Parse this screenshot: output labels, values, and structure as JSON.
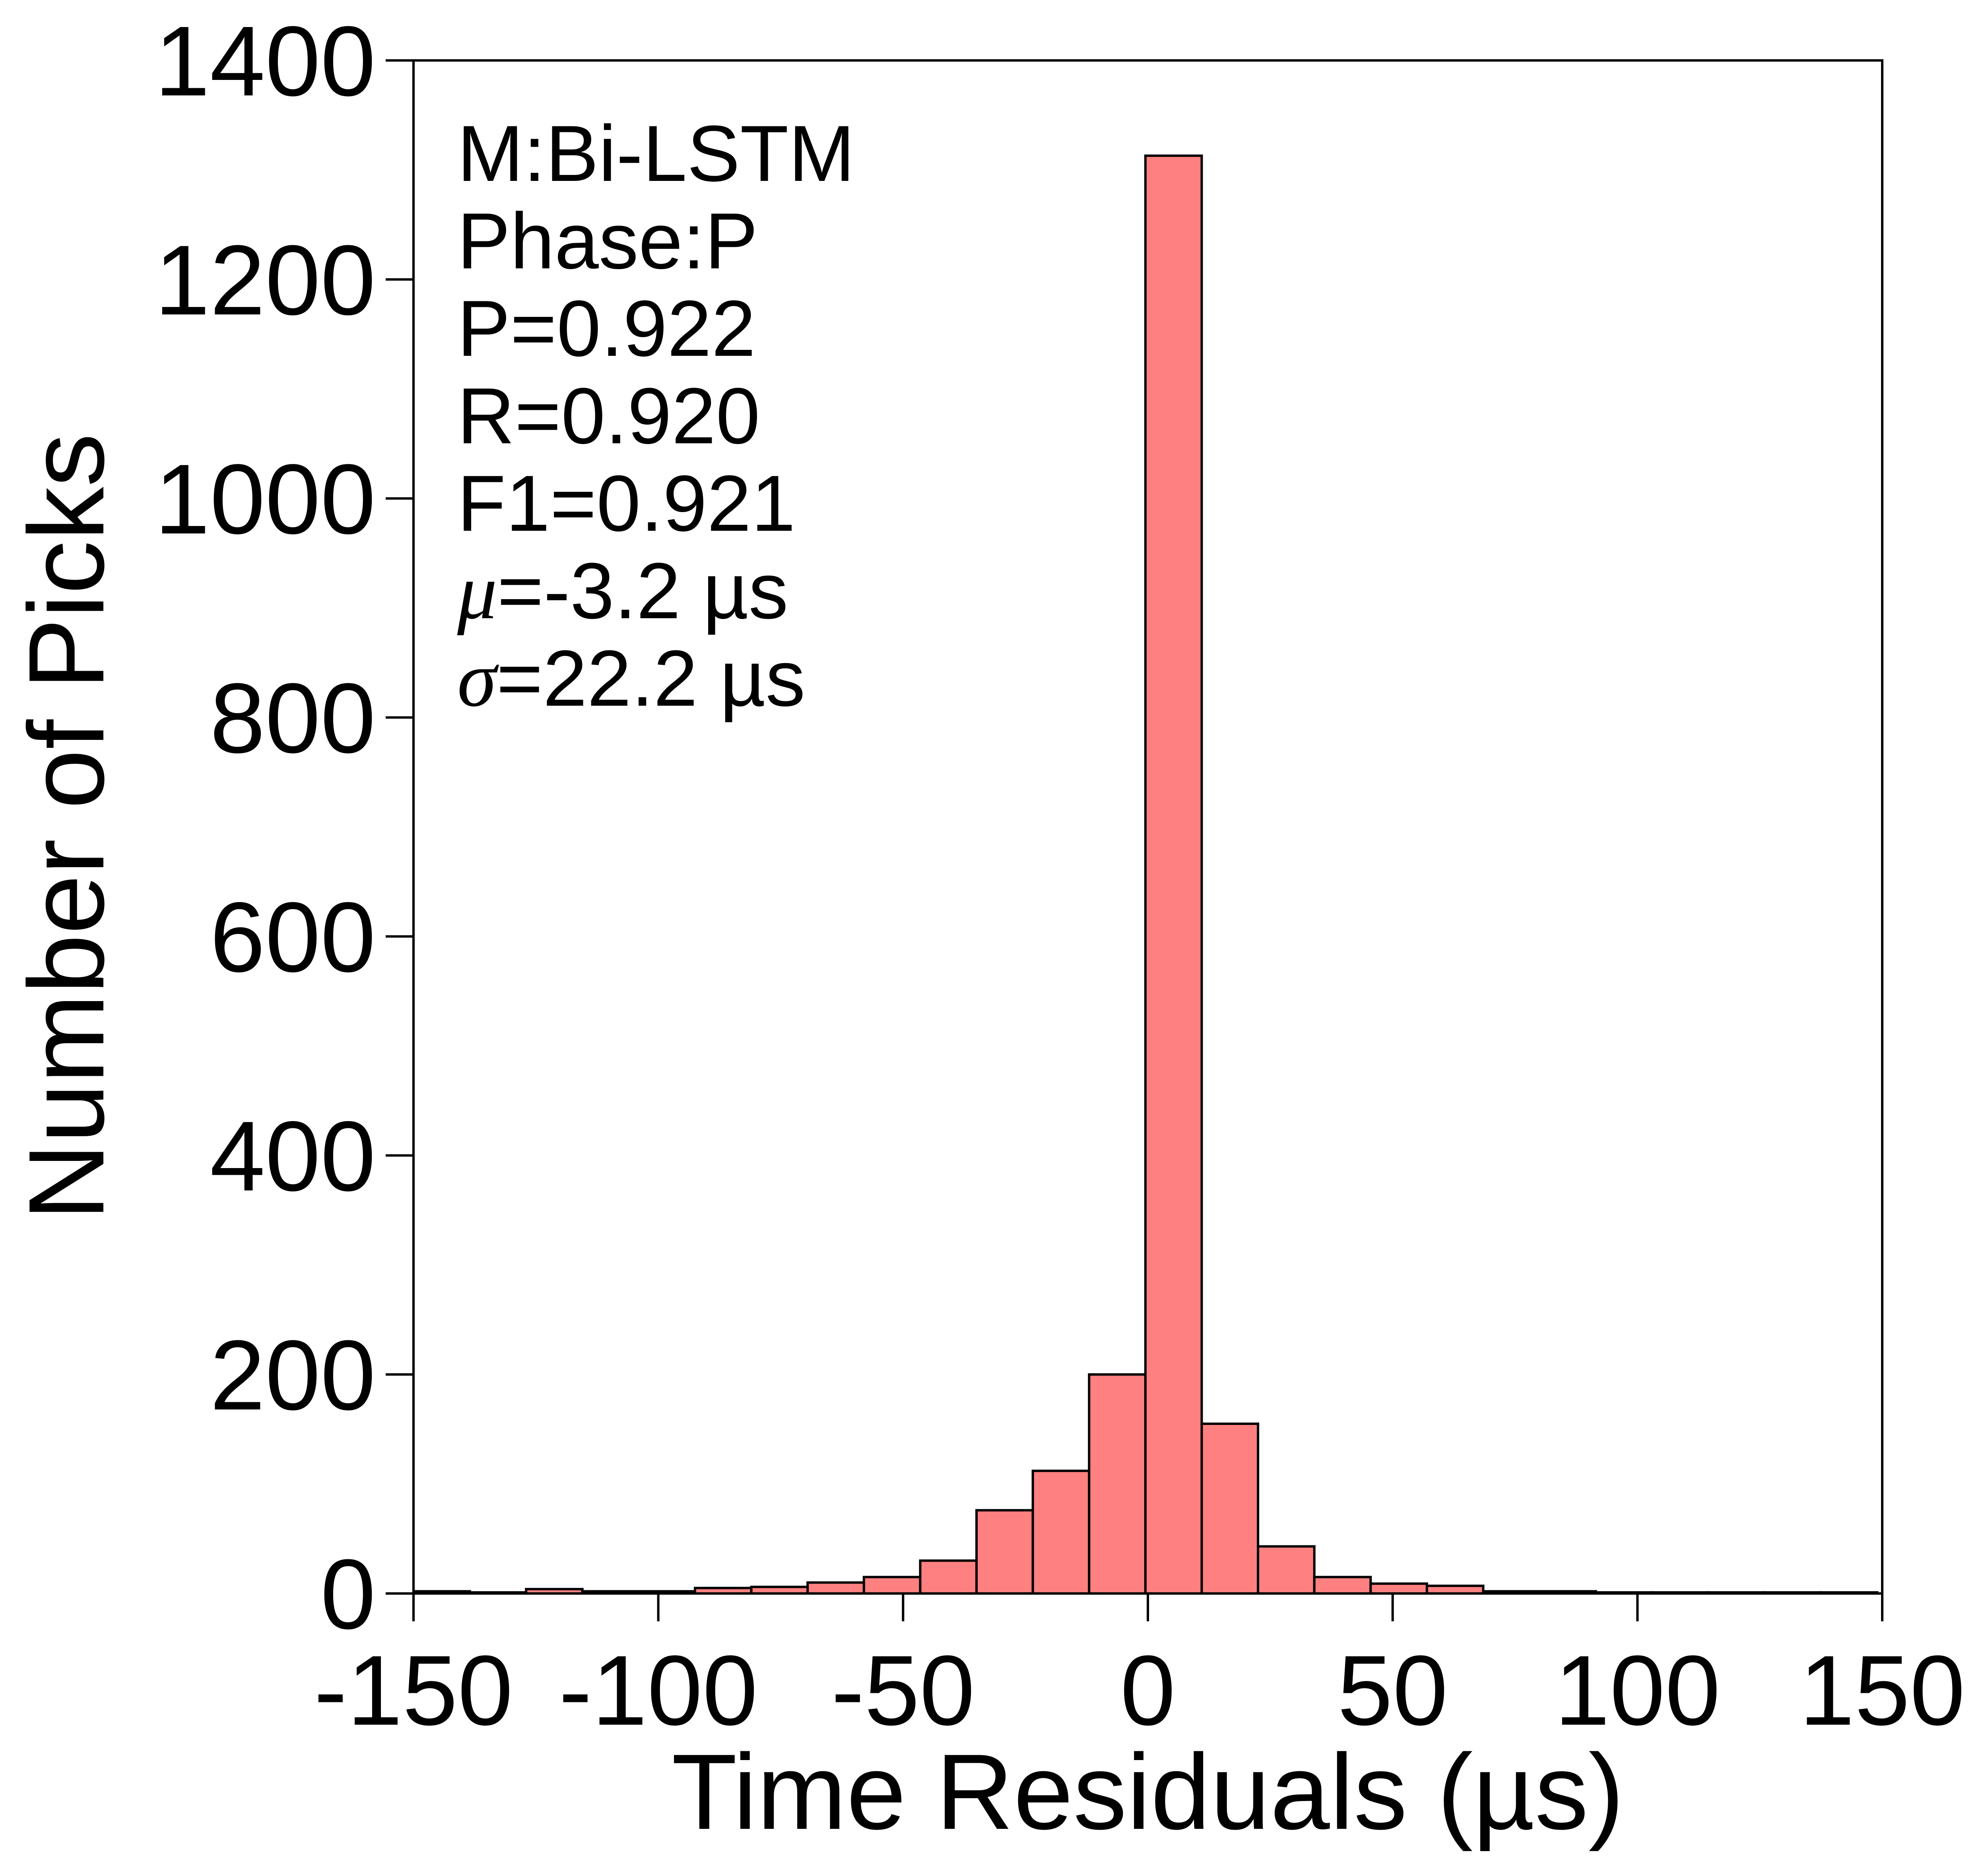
{
  "chart_data": {
    "type": "bar",
    "title": "",
    "xlabel": "Time Residuals (µs)",
    "ylabel": "Number of Picks",
    "xlim": [
      -150,
      150
    ],
    "ylim": [
      0,
      1400
    ],
    "xticks": [
      -150,
      -100,
      -50,
      0,
      50,
      100,
      150
    ],
    "xtick_labels": [
      "-150",
      "-100",
      "-50",
      "0",
      "50",
      "100",
      "150"
    ],
    "yticks": [
      0,
      200,
      400,
      600,
      800,
      1000,
      1200,
      1400
    ],
    "ytick_labels": [
      "0",
      "200",
      "400",
      "600",
      "800",
      "1000",
      "1200",
      "1400"
    ],
    "grid": false,
    "bar_color": "#FF8080",
    "edge_color": "#000000",
    "bins": [
      {
        "x0": -150.0,
        "x1": -138.5,
        "value": 2
      },
      {
        "x0": -138.5,
        "x1": -127.0,
        "value": 1
      },
      {
        "x0": -127.0,
        "x1": -115.5,
        "value": 4
      },
      {
        "x0": -115.5,
        "x1": -104.0,
        "value": 2
      },
      {
        "x0": -104.0,
        "x1": -92.5,
        "value": 2
      },
      {
        "x0": -92.5,
        "x1": -81.0,
        "value": 5
      },
      {
        "x0": -81.0,
        "x1": -69.5,
        "value": 6
      },
      {
        "x0": -69.5,
        "x1": -58.0,
        "value": 10
      },
      {
        "x0": -58.0,
        "x1": -46.5,
        "value": 15
      },
      {
        "x0": -46.5,
        "x1": -35.0,
        "value": 30
      },
      {
        "x0": -35.0,
        "x1": -23.5,
        "value": 76
      },
      {
        "x0": -23.5,
        "x1": -12.0,
        "value": 112
      },
      {
        "x0": -12.0,
        "x1": -0.5,
        "value": 200
      },
      {
        "x0": -0.5,
        "x1": 11.0,
        "value": 1313
      },
      {
        "x0": 11.0,
        "x1": 22.5,
        "value": 155
      },
      {
        "x0": 22.5,
        "x1": 34.0,
        "value": 43
      },
      {
        "x0": 34.0,
        "x1": 45.5,
        "value": 15
      },
      {
        "x0": 45.5,
        "x1": 57.0,
        "value": 9
      },
      {
        "x0": 57.0,
        "x1": 68.5,
        "value": 7
      },
      {
        "x0": 68.5,
        "x1": 80.0,
        "value": 2
      },
      {
        "x0": 80.0,
        "x1": 91.5,
        "value": 2
      },
      {
        "x0": 91.5,
        "x1": 103.0,
        "value": 1
      },
      {
        "x0": 103.0,
        "x1": 114.5,
        "value": 1
      },
      {
        "x0": 114.5,
        "x1": 126.0,
        "value": 1
      },
      {
        "x0": 126.0,
        "x1": 137.5,
        "value": 1
      },
      {
        "x0": 137.5,
        "x1": 149.0,
        "value": 1
      }
    ],
    "annotations": {
      "model": "M:Bi-LSTM",
      "phase": "Phase:P",
      "precision": "P=0.922",
      "recall": "R=0.920",
      "f1": "F1=0.921",
      "mu_symbol": "μ",
      "mu_value": "=-3.2 µs",
      "sigma_symbol": "σ",
      "sigma_value": "=22.2 µs"
    }
  }
}
